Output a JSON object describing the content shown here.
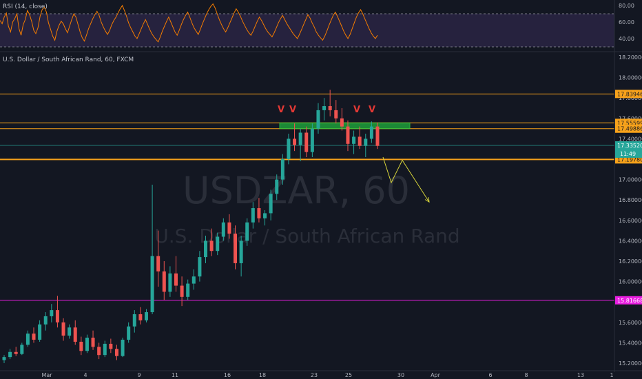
{
  "rsi_panel": {
    "label": "RSI (14, close)",
    "ticks": [
      "80.00",
      "60.00",
      "40.00"
    ],
    "upper_band": 70,
    "lower_band": 30,
    "range": [
      25,
      85
    ],
    "band_color": "#7e57c2",
    "line_color": "#f57c00",
    "values": [
      62,
      58,
      66,
      71,
      55,
      48,
      60,
      64,
      70,
      52,
      44,
      57,
      63,
      74,
      69,
      61,
      50,
      46,
      53,
      67,
      75,
      78,
      72,
      59,
      51,
      43,
      38,
      49,
      56,
      61,
      58,
      52,
      47,
      55,
      63,
      70,
      66,
      57,
      48,
      41,
      37,
      44,
      52,
      58,
      64,
      69,
      73,
      68,
      60,
      54,
      49,
      45,
      50,
      57,
      62,
      66,
      71,
      76,
      80,
      74,
      67,
      59,
      53,
      48,
      43,
      40,
      46,
      52,
      58,
      63,
      57,
      51,
      46,
      42,
      39,
      36,
      42,
      49,
      55,
      61,
      66,
      60,
      54,
      48,
      44,
      50,
      57,
      63,
      68,
      72,
      66,
      59,
      53,
      49,
      45,
      51,
      58,
      64,
      70,
      75,
      79,
      82,
      77,
      70,
      63,
      57,
      52,
      48,
      53,
      59,
      65,
      71,
      76,
      72,
      67,
      61,
      56,
      51,
      47,
      44,
      49,
      55,
      61,
      66,
      62,
      57,
      52,
      48,
      45,
      42,
      47,
      53,
      59,
      64,
      68,
      63,
      58,
      54,
      50,
      46,
      43,
      40,
      45,
      51,
      57,
      63,
      69,
      65,
      59,
      54,
      48,
      44,
      41,
      38,
      43,
      49,
      56,
      62,
      68,
      72,
      67,
      61,
      55,
      49,
      44,
      40,
      45,
      52,
      59,
      66,
      71,
      75,
      70,
      64,
      58,
      52,
      47,
      43,
      40,
      44
    ]
  },
  "symbol": {
    "label": "U.S. Dollar / South African Rand, 60, FXCM",
    "watermark_ticker": "USDZAR, 60",
    "watermark_name": "U.S. Dollar / South African Rand"
  },
  "price_axis": {
    "ticks": [
      "18.20000",
      "18.00000",
      "17.80000",
      "17.60000",
      "17.40000",
      "17.00000",
      "16.80000",
      "16.60000",
      "16.40000",
      "16.20000",
      "16.00000",
      "15.60000",
      "15.40000",
      "15.20000"
    ],
    "range": [
      15.18,
      18.22
    ]
  },
  "time_axis": {
    "labels": [
      "Mar",
      "4",
      "9",
      "11",
      "16",
      "18",
      "23",
      "25",
      "30",
      "Apr",
      "6",
      "8",
      "13",
      "1"
    ]
  },
  "levels": [
    {
      "price": 17.83946,
      "label": "17.83946",
      "color": "#f7a21b"
    },
    {
      "price": 17.55599,
      "label": "17.55599",
      "color": "#f7a21b"
    },
    {
      "price": 17.49886,
      "label": "17.49886",
      "color": "#f7a21b"
    },
    {
      "price": 17.1978,
      "label": "17.19780",
      "color": "#f7a21b"
    },
    {
      "price": 15.81668,
      "label": "15.81668",
      "color": "#e91ee0"
    }
  ],
  "current_price": {
    "price": 17.3352,
    "label": "17.33520",
    "countdown": "11:49",
    "color": "#26a69a"
  },
  "zone": {
    "top": 17.556,
    "bottom": 17.499,
    "color": "#1e9e3a"
  },
  "markers": {
    "symbol": "V",
    "color": "#e53935"
  },
  "projection_color": "#d7d43a",
  "candle_colors": {
    "up": "#26a69a",
    "down": "#ef5350"
  },
  "candles": [
    [
      15.23,
      15.28,
      15.2,
      15.26
    ],
    [
      15.26,
      15.34,
      15.24,
      15.31
    ],
    [
      15.31,
      15.36,
      15.27,
      15.29
    ],
    [
      15.29,
      15.4,
      15.28,
      15.38
    ],
    [
      15.38,
      15.52,
      15.36,
      15.49
    ],
    [
      15.49,
      15.55,
      15.4,
      15.43
    ],
    [
      15.43,
      15.62,
      15.41,
      15.58
    ],
    [
      15.58,
      15.7,
      15.52,
      15.66
    ],
    [
      15.66,
      15.78,
      15.6,
      15.72
    ],
    [
      15.72,
      15.86,
      15.55,
      15.6
    ],
    [
      15.6,
      15.64,
      15.42,
      15.47
    ],
    [
      15.47,
      15.58,
      15.44,
      15.55
    ],
    [
      15.55,
      15.62,
      15.38,
      15.41
    ],
    [
      15.41,
      15.46,
      15.28,
      15.32
    ],
    [
      15.32,
      15.48,
      15.3,
      15.45
    ],
    [
      15.45,
      15.52,
      15.33,
      15.36
    ],
    [
      15.36,
      15.4,
      15.24,
      15.28
    ],
    [
      15.28,
      15.42,
      15.26,
      15.39
    ],
    [
      15.39,
      15.44,
      15.3,
      15.34
    ],
    [
      15.34,
      15.38,
      15.23,
      15.27
    ],
    [
      15.27,
      15.45,
      15.26,
      15.43
    ],
    [
      15.43,
      15.6,
      15.4,
      15.56
    ],
    [
      15.56,
      15.72,
      15.5,
      15.68
    ],
    [
      15.68,
      15.75,
      15.58,
      15.62
    ],
    [
      15.62,
      15.73,
      15.6,
      15.7
    ],
    [
      15.7,
      16.95,
      15.68,
      16.25
    ],
    [
      16.25,
      16.5,
      15.95,
      16.1
    ],
    [
      16.1,
      16.2,
      15.82,
      15.9
    ],
    [
      15.9,
      16.15,
      15.85,
      16.08
    ],
    [
      16.08,
      16.25,
      15.9,
      15.96
    ],
    [
      15.96,
      16.05,
      15.76,
      15.85
    ],
    [
      15.85,
      16.02,
      15.82,
      15.98
    ],
    [
      15.98,
      16.12,
      15.92,
      16.05
    ],
    [
      16.05,
      16.3,
      16.0,
      16.24
    ],
    [
      16.24,
      16.45,
      16.18,
      16.4
    ],
    [
      16.4,
      16.52,
      16.25,
      16.3
    ],
    [
      16.3,
      16.48,
      16.26,
      16.44
    ],
    [
      16.44,
      16.62,
      16.4,
      16.58
    ],
    [
      16.58,
      16.66,
      16.42,
      16.47
    ],
    [
      16.47,
      16.55,
      16.12,
      16.18
    ],
    [
      16.18,
      16.45,
      16.05,
      16.4
    ],
    [
      16.4,
      16.62,
      16.35,
      16.58
    ],
    [
      16.58,
      16.78,
      16.52,
      16.72
    ],
    [
      16.72,
      16.82,
      16.58,
      16.62
    ],
    [
      16.62,
      16.7,
      16.55,
      16.67
    ],
    [
      16.67,
      16.9,
      16.6,
      16.86
    ],
    [
      16.86,
      17.05,
      16.8,
      17.0
    ],
    [
      17.0,
      17.25,
      16.95,
      17.2
    ],
    [
      17.2,
      17.45,
      17.15,
      17.4
    ],
    [
      17.4,
      17.55,
      17.28,
      17.34
    ],
    [
      17.34,
      17.5,
      17.18,
      17.46
    ],
    [
      17.46,
      17.52,
      17.22,
      17.27
    ],
    [
      17.27,
      17.55,
      17.22,
      17.5
    ],
    [
      17.5,
      17.75,
      17.45,
      17.68
    ],
    [
      17.68,
      17.8,
      17.58,
      17.72
    ],
    [
      17.72,
      17.88,
      17.62,
      17.68
    ],
    [
      17.68,
      17.78,
      17.55,
      17.6
    ],
    [
      17.6,
      17.7,
      17.48,
      17.52
    ],
    [
      17.52,
      17.58,
      17.28,
      17.35
    ],
    [
      17.35,
      17.48,
      17.25,
      17.42
    ],
    [
      17.42,
      17.52,
      17.3,
      17.33
    ],
    [
      17.33,
      17.45,
      17.22,
      17.4
    ],
    [
      17.4,
      17.57,
      17.36,
      17.52
    ],
    [
      17.52,
      17.56,
      17.3,
      17.33
    ]
  ]
}
